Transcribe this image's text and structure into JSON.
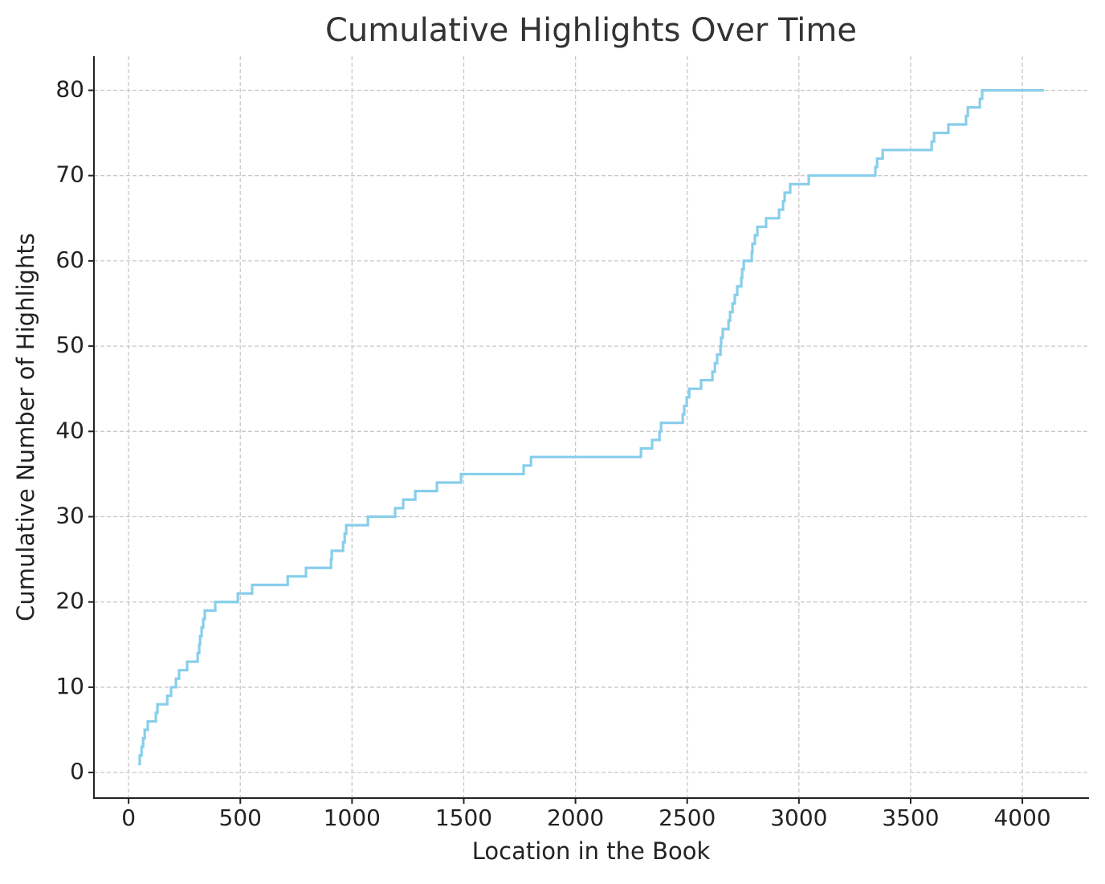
{
  "chart_data": {
    "type": "line",
    "drawstyle": "steps-post",
    "title": "Cumulative Highlights Over Time",
    "xlabel": "Location in the Book",
    "ylabel": "Cumulative Number of Highlights",
    "x": [
      43,
      50,
      58,
      65,
      72,
      86,
      122,
      129,
      173,
      190,
      212,
      226,
      262,
      309,
      316,
      320,
      327,
      334,
      341,
      388,
      489,
      553,
      712,
      794,
      906,
      909,
      960,
      967,
      974,
      1071,
      1193,
      1229,
      1283,
      1380,
      1488,
      1768,
      1801,
      2293,
      2343,
      2376,
      2383,
      2480,
      2487,
      2498,
      2509,
      2562,
      2613,
      2624,
      2634,
      2649,
      2652,
      2659,
      2685,
      2692,
      2703,
      2713,
      2724,
      2742,
      2746,
      2753,
      2789,
      2792,
      2803,
      2814,
      2853,
      2911,
      2929,
      2936,
      2961,
      3044,
      3342,
      3350,
      3375,
      3594,
      3605,
      3669,
      3748,
      3756,
      3810,
      3820,
      4097
    ],
    "series": [
      {
        "name": "Cumulative Highlights",
        "color": "#87ceeb",
        "values": [
          1,
          2,
          3,
          4,
          5,
          6,
          7,
          8,
          9,
          10,
          11,
          12,
          13,
          14,
          15,
          16,
          17,
          18,
          19,
          20,
          21,
          22,
          23,
          24,
          25,
          26,
          27,
          28,
          29,
          30,
          31,
          32,
          33,
          34,
          35,
          36,
          37,
          38,
          39,
          40,
          41,
          42,
          43,
          44,
          45,
          46,
          47,
          48,
          49,
          50,
          51,
          52,
          53,
          54,
          55,
          56,
          57,
          58,
          59,
          60,
          61,
          62,
          63,
          64,
          65,
          66,
          67,
          68,
          69,
          70,
          71,
          72,
          73,
          74,
          75,
          76,
          77,
          78,
          79,
          80,
          80
        ]
      }
    ],
    "xlim": [
      -155,
      4298
    ],
    "ylim": [
      -3,
      84
    ],
    "xticks": [
      0,
      500,
      1000,
      1500,
      2000,
      2500,
      3000,
      3500,
      4000
    ],
    "yticks": [
      0,
      10,
      20,
      30,
      40,
      50,
      60,
      70,
      80
    ],
    "grid": true
  }
}
